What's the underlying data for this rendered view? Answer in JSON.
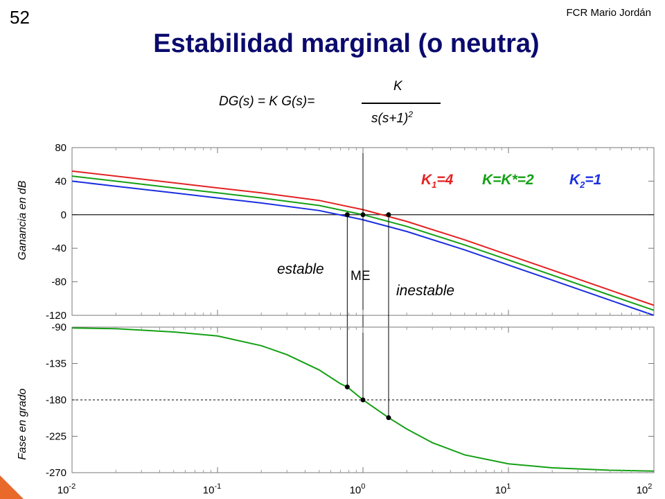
{
  "slide_number": "52",
  "author": "FCR Mario Jordán",
  "title": "Estabilidad marginal (o neutra)",
  "formula": {
    "lhs": "DG(s) = K G(s)=",
    "numerator": "K",
    "denominator": "s(s+1)",
    "exponent": "2"
  },
  "colors": {
    "title": "#0a0a6e",
    "k1": "#e32222",
    "kstar": "#14a014",
    "k2": "#1a2ee0",
    "phase": "#14a014",
    "accent": "#e8692a"
  },
  "chart_data": [
    {
      "type": "line",
      "panel": "magnitude",
      "ylabel": "Ganancia en dB",
      "x_scale": "log",
      "xlim": [
        0.01,
        100
      ],
      "ylim": [
        -120,
        80
      ],
      "y_ticks": [
        "80",
        "40",
        "0",
        "-40",
        "-80",
        "-120"
      ],
      "x_ticks": [
        {
          "base": "10",
          "exp": "-2",
          "value": 0.01
        },
        {
          "base": "10",
          "exp": "-1",
          "value": 0.1
        },
        {
          "base": "10",
          "exp": "0",
          "value": 1
        },
        {
          "base": "10",
          "exp": "1",
          "value": 10
        },
        {
          "base": "10",
          "exp": "2",
          "value": 100
        }
      ],
      "x": [
        0.01,
        0.02,
        0.05,
        0.1,
        0.2,
        0.5,
        1,
        2,
        5,
        10,
        20,
        50,
        100
      ],
      "series": [
        {
          "name": "K1=4",
          "label_main": "K",
          "label_sub": "1",
          "label_tail": "=4",
          "color": "#e32222",
          "values": [
            52,
            46,
            38,
            32,
            26,
            17,
            6,
            -8,
            -30,
            -48,
            -66,
            -90,
            -108
          ]
        },
        {
          "name": "K=K*=2",
          "label_main": "K=K*=2",
          "label_sub": "",
          "label_tail": "",
          "color": "#14a014",
          "values": [
            46,
            40,
            32,
            26,
            20,
            11,
            0,
            -14,
            -36,
            -54,
            -72,
            -96,
            -114
          ]
        },
        {
          "name": "K2=1",
          "label_main": "K",
          "label_sub": "2",
          "label_tail": "=1",
          "color": "#1a2ee0",
          "values": [
            40,
            34,
            26,
            20,
            14,
            5,
            -6,
            -20,
            -42,
            -60,
            -78,
            -102,
            -120
          ]
        }
      ],
      "crossover_points": [
        0.78,
        1.0,
        1.5
      ],
      "annotations": [
        "estable",
        "ME",
        "inestable"
      ]
    },
    {
      "type": "line",
      "panel": "phase",
      "ylabel": "Fase en grado",
      "x_scale": "log",
      "xlim": [
        0.01,
        100
      ],
      "ylim": [
        -270,
        -90
      ],
      "y_ticks": [
        "-90",
        "-135",
        "-180",
        "-225",
        "-270"
      ],
      "reference_line": -180,
      "x": [
        0.01,
        0.02,
        0.05,
        0.1,
        0.2,
        0.3,
        0.5,
        0.7,
        0.78,
        1,
        1.5,
        2,
        3,
        5,
        10,
        20,
        50,
        100
      ],
      "series": [
        {
          "name": "phase",
          "color": "#14a014",
          "values": [
            -91,
            -92,
            -96,
            -101,
            -113,
            -124,
            -143,
            -160,
            -164,
            -180,
            -202,
            -216,
            -233,
            -248,
            -259,
            -264,
            -267,
            -268
          ]
        }
      ],
      "marked_points": [
        {
          "x": 0.78,
          "y": -164
        },
        {
          "x": 1,
          "y": -180
        },
        {
          "x": 1.5,
          "y": -202
        }
      ]
    }
  ]
}
